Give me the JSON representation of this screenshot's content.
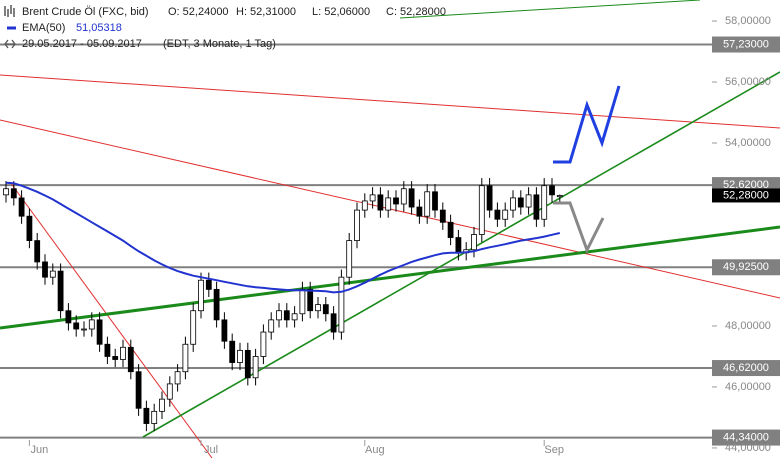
{
  "chart_data": {
    "type": "candlestick",
    "title": "Brent Crude Öl (FXC, bid)",
    "ohlc_text": [
      "O: 52,24000",
      "H: 52,31000",
      "L: 52,06000",
      "C: 52,28000"
    ],
    "date_range": "29.05.2017 - 05.09.2017",
    "period": "(EDT, 3 Monate, 1 Tag)",
    "categories": [
      null,
      null,
      null,
      "Jun",
      null,
      null,
      null,
      null,
      null,
      null,
      null,
      null,
      null,
      null,
      null,
      null,
      null,
      null,
      null,
      null,
      null,
      null,
      null,
      null,
      null,
      "Jul",
      null,
      null,
      null,
      null,
      null,
      null,
      null,
      null,
      null,
      null,
      null,
      null,
      null,
      null,
      null,
      null,
      null,
      null,
      null,
      null,
      "Aug",
      null,
      null,
      null,
      null,
      null,
      null,
      null,
      null,
      null,
      null,
      null,
      null,
      null,
      null,
      null,
      null,
      null,
      null,
      null,
      null,
      null,
      null,
      "Sep",
      null,
      null
    ],
    "open": [
      52.3,
      52.5,
      52.2,
      51.6,
      50.8,
      50.1,
      49.6,
      49.8,
      48.5,
      48.1,
      47.9,
      47.9,
      48.2,
      47.4,
      47.0,
      46.9,
      47.3,
      46.5,
      45.3,
      44.8,
      45.2,
      45.6,
      46.1,
      46.5,
      47.4,
      48.5,
      49.5,
      49.2,
      48.2,
      47.5,
      46.8,
      47.2,
      46.3,
      47.0,
      47.8,
      48.2,
      48.5,
      48.2,
      48.4,
      49.2,
      48.5,
      48.7,
      48.4,
      47.8,
      49.6,
      50.8,
      51.8,
      52.1,
      52.3,
      51.8,
      52.2,
      52.0,
      52.5,
      51.9,
      51.6,
      52.4,
      51.8,
      51.4,
      50.9,
      50.4,
      50.5,
      51.0,
      52.6,
      51.8,
      51.5,
      51.8,
      52.2,
      51.9,
      52.3,
      51.5,
      52.6,
      52.24
    ],
    "high": [
      52.75,
      52.75,
      52.45,
      51.85,
      51.05,
      50.35,
      50.05,
      50.05,
      48.75,
      48.35,
      48.15,
      48.45,
      48.45,
      47.65,
      47.25,
      47.55,
      47.55,
      46.75,
      45.55,
      45.45,
      45.85,
      46.35,
      46.75,
      47.65,
      48.75,
      49.75,
      49.75,
      49.45,
      48.45,
      47.75,
      47.45,
      47.45,
      47.25,
      48.05,
      48.45,
      48.75,
      48.75,
      48.65,
      49.45,
      49.45,
      48.95,
      48.95,
      48.65,
      49.85,
      51.05,
      52.05,
      52.35,
      52.55,
      52.55,
      52.45,
      52.45,
      52.75,
      52.75,
      52.15,
      52.65,
      52.65,
      52.05,
      51.65,
      51.15,
      50.75,
      51.25,
      52.85,
      52.85,
      52.05,
      52.05,
      52.45,
      52.45,
      52.55,
      52.55,
      52.85,
      52.85,
      52.31
    ],
    "low": [
      52.05,
      51.95,
      51.35,
      50.55,
      49.85,
      49.35,
      49.35,
      48.25,
      47.85,
      47.65,
      47.65,
      47.65,
      47.15,
      46.75,
      46.65,
      46.65,
      46.25,
      45.05,
      44.55,
      44.55,
      44.95,
      45.35,
      45.85,
      46.25,
      47.15,
      48.25,
      48.95,
      47.95,
      47.25,
      46.55,
      46.55,
      46.05,
      46.05,
      46.75,
      47.55,
      47.95,
      47.95,
      47.95,
      48.15,
      48.25,
      48.25,
      48.15,
      47.55,
      47.55,
      49.35,
      50.55,
      51.55,
      51.85,
      51.55,
      51.55,
      51.75,
      51.75,
      51.65,
      51.35,
      51.35,
      51.55,
      51.15,
      50.65,
      50.15,
      50.15,
      50.25,
      50.75,
      51.55,
      51.25,
      51.25,
      51.55,
      51.65,
      51.65,
      51.25,
      51.25,
      52.05,
      52.06
    ],
    "close": [
      52.5,
      52.2,
      51.6,
      50.8,
      50.1,
      49.6,
      49.8,
      48.5,
      48.1,
      47.9,
      47.9,
      48.2,
      47.4,
      47.0,
      46.9,
      47.3,
      46.5,
      45.3,
      44.8,
      45.2,
      45.6,
      46.1,
      46.5,
      47.4,
      48.5,
      49.5,
      49.2,
      48.2,
      47.5,
      46.8,
      47.2,
      46.3,
      47.0,
      47.8,
      48.2,
      48.5,
      48.2,
      48.4,
      49.2,
      48.5,
      48.7,
      48.4,
      47.8,
      49.6,
      50.8,
      51.8,
      52.1,
      52.3,
      51.8,
      52.2,
      52.0,
      52.5,
      51.9,
      51.6,
      52.4,
      51.8,
      51.4,
      50.9,
      50.4,
      50.5,
      51.0,
      52.6,
      51.8,
      51.5,
      51.8,
      52.2,
      51.9,
      52.3,
      51.5,
      52.6,
      52.3,
      52.28
    ],
    "up_color": "#ffffff",
    "down_color": "#000000",
    "series": [
      {
        "name": "EMA(50)",
        "value_label": "51,05318",
        "color": "#2233d0",
        "values": [
          52.7,
          52.68,
          52.6,
          52.5,
          52.4,
          52.28,
          52.15,
          52.0,
          51.85,
          51.7,
          51.55,
          51.4,
          51.25,
          51.1,
          50.95,
          50.8,
          50.62,
          50.45,
          50.3,
          50.15,
          50.02,
          49.9,
          49.8,
          49.72,
          49.65,
          49.6,
          49.55,
          49.5,
          49.45,
          49.4,
          49.35,
          49.3,
          49.27,
          49.25,
          49.22,
          49.2,
          49.18,
          49.17,
          49.17,
          49.16,
          49.15,
          49.14,
          49.1,
          49.12,
          49.2,
          49.3,
          49.42,
          49.55,
          49.68,
          49.8,
          49.9,
          50.0,
          50.1,
          50.18,
          50.25,
          50.32,
          50.38,
          50.4,
          50.4,
          50.42,
          50.45,
          50.52,
          50.58,
          50.63,
          50.68,
          50.74,
          50.8,
          50.84,
          50.88,
          50.93,
          50.99,
          51.05
        ]
      }
    ],
    "levels": [
      {
        "value": 57.23,
        "label": "57,23000"
      },
      {
        "value": 52.62,
        "label": "52,62000"
      },
      {
        "value": 49.925,
        "label": "49,92500"
      },
      {
        "value": 46.62,
        "label": "46,62000"
      },
      {
        "value": 44.34,
        "label": "44,34000"
      }
    ],
    "level_color": "#808080",
    "last_price": {
      "value": 52.28,
      "label": "52,28000"
    },
    "ylim": [
      43.67,
      58.69
    ],
    "yticks": [
      {
        "value": 44,
        "label": "44,00000"
      },
      {
        "value": 46,
        "label": "46,00000"
      },
      {
        "value": 48,
        "label": "48,00000"
      },
      {
        "value": 54,
        "label": "54,00000"
      },
      {
        "value": 56,
        "label": "56,00000"
      },
      {
        "value": 58,
        "label": "58,00000"
      }
    ]
  }
}
